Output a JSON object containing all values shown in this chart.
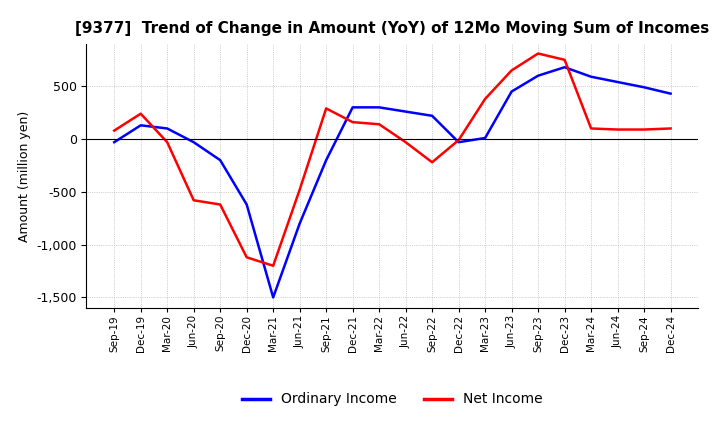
{
  "title": "[9377]  Trend of Change in Amount (YoY) of 12Mo Moving Sum of Incomes",
  "ylabel": "Amount (million yen)",
  "ordinary_income": {
    "x": [
      "Sep-19",
      "Dec-19",
      "Mar-20",
      "Jun-20",
      "Sep-20",
      "Dec-20",
      "Mar-21",
      "Jun-21",
      "Sep-21",
      "Dec-21",
      "Mar-22",
      "Jun-22",
      "Sep-22",
      "Dec-22",
      "Mar-23",
      "Jun-23",
      "Sep-23",
      "Dec-23",
      "Mar-24",
      "Jun-24",
      "Sep-24",
      "Dec-24"
    ],
    "y": [
      -30,
      130,
      100,
      -30,
      -200,
      -620,
      -1500,
      -800,
      -200,
      300,
      300,
      260,
      220,
      -30,
      10,
      450,
      600,
      680,
      590,
      540,
      490,
      430
    ]
  },
  "net_income": {
    "x": [
      "Sep-19",
      "Dec-19",
      "Mar-20",
      "Jun-20",
      "Sep-20",
      "Dec-20",
      "Mar-21",
      "Jun-21",
      "Sep-21",
      "Dec-21",
      "Mar-22",
      "Jun-22",
      "Sep-22",
      "Dec-22",
      "Mar-23",
      "Jun-23",
      "Sep-23",
      "Dec-23",
      "Mar-24",
      "Jun-24",
      "Sep-24",
      "Dec-24"
    ],
    "y": [
      80,
      240,
      -30,
      -580,
      -620,
      -1120,
      -1200,
      -480,
      290,
      160,
      140,
      -30,
      -220,
      -10,
      380,
      650,
      810,
      750,
      100,
      90,
      90,
      100
    ]
  },
  "ordinary_color": "#0000ff",
  "net_color": "#ff0000",
  "background_color": "#ffffff",
  "grid_color": "#aaaaaa",
  "ylim": [
    -1600,
    900
  ],
  "yticks": [
    500,
    0,
    -500,
    -1000,
    -1500
  ],
  "title_fontsize": 11,
  "axis_fontsize": 9,
  "legend_labels": [
    "Ordinary Income",
    "Net Income"
  ],
  "line_width": 1.8
}
